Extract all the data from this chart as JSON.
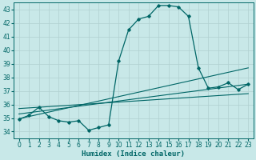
{
  "xlabel": "Humidex (Indice chaleur)",
  "background_color": "#c8e8e8",
  "line_color": "#006666",
  "grid_color": "#b0d0d0",
  "xlim": [
    -0.5,
    23.5
  ],
  "ylim": [
    33.5,
    43.5
  ],
  "yticks": [
    34,
    35,
    36,
    37,
    38,
    39,
    40,
    41,
    42,
    43
  ],
  "xticks": [
    0,
    1,
    2,
    3,
    4,
    5,
    6,
    7,
    8,
    9,
    10,
    11,
    12,
    13,
    14,
    15,
    16,
    17,
    18,
    19,
    20,
    21,
    22,
    23
  ],
  "curve1_x": [
    0,
    1,
    2,
    3,
    4,
    5,
    6,
    7,
    8,
    9,
    10,
    11,
    12,
    13,
    14,
    15,
    16,
    17,
    18,
    19,
    20,
    21,
    22,
    23
  ],
  "curve1_y": [
    34.9,
    35.2,
    35.8,
    35.1,
    34.8,
    34.7,
    34.8,
    34.1,
    34.3,
    34.5,
    39.2,
    41.5,
    42.3,
    42.5,
    43.3,
    43.3,
    43.2,
    42.5,
    38.7,
    37.2,
    37.3,
    37.6,
    37.1,
    37.5
  ],
  "line1_x": [
    0,
    23
  ],
  "line1_y": [
    34.95,
    38.7
  ],
  "line2_x": [
    0,
    23
  ],
  "line2_y": [
    35.3,
    37.5
  ],
  "line3_x": [
    0,
    23
  ],
  "line3_y": [
    35.7,
    36.8
  ],
  "xlabel_fontsize": 6.5,
  "tick_fontsize": 5.5
}
